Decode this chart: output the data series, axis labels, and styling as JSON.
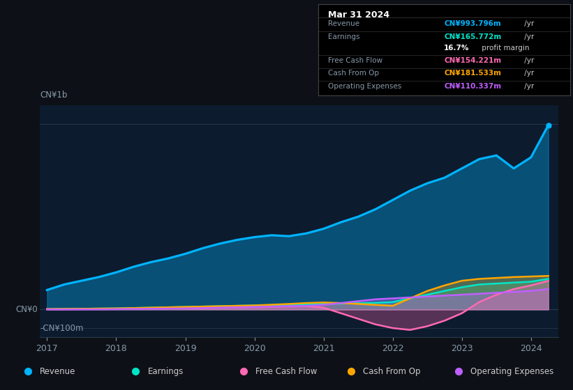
{
  "bg_color": "#0d1117",
  "chart_bg": "#0d1b2e",
  "grid_color": "#2a3a4a",
  "title_box": {
    "date": "Mar 31 2024",
    "rows": [
      {
        "label": "Revenue",
        "value": "CN¥993.796m",
        "color": "#00b4ff"
      },
      {
        "label": "Earnings",
        "value": "CN¥165.772m",
        "color": "#00e5c8"
      },
      {
        "label": "",
        "value": "16.7%",
        "suffix": " profit margin",
        "color": "#ffffff"
      },
      {
        "label": "Free Cash Flow",
        "value": "CN¥154.221m",
        "color": "#ff69b4"
      },
      {
        "label": "Cash From Op",
        "value": "CN¥181.533m",
        "color": "#ffa500"
      },
      {
        "label": "Operating Expenses",
        "value": "CN¥110.337m",
        "color": "#bf5fff"
      }
    ]
  },
  "ylabel_top": "CN¥1b",
  "ylabel_zero": "CN¥0",
  "ylabel_neg": "-CN¥100m",
  "years": [
    2017.0,
    2017.25,
    2017.5,
    2017.75,
    2018.0,
    2018.25,
    2018.5,
    2018.75,
    2019.0,
    2019.25,
    2019.5,
    2019.75,
    2020.0,
    2020.25,
    2020.5,
    2020.75,
    2021.0,
    2021.25,
    2021.5,
    2021.75,
    2022.0,
    2022.25,
    2022.5,
    2022.75,
    2023.0,
    2023.25,
    2023.5,
    2023.75,
    2024.0,
    2024.25
  ],
  "revenue": [
    105,
    135,
    155,
    175,
    200,
    230,
    255,
    275,
    300,
    330,
    355,
    375,
    390,
    400,
    395,
    410,
    435,
    470,
    500,
    540,
    590,
    640,
    680,
    710,
    760,
    810,
    830,
    760,
    820,
    993
  ],
  "earnings": [
    2,
    3,
    4,
    5,
    6,
    8,
    10,
    12,
    14,
    16,
    18,
    20,
    22,
    24,
    26,
    28,
    30,
    32,
    34,
    36,
    40,
    60,
    80,
    100,
    120,
    135,
    140,
    145,
    150,
    165
  ],
  "free_cash_flow": [
    2,
    2,
    3,
    3,
    4,
    5,
    5,
    6,
    7,
    8,
    9,
    10,
    12,
    14,
    16,
    18,
    10,
    -20,
    -50,
    -80,
    -100,
    -110,
    -90,
    -60,
    -20,
    40,
    80,
    110,
    130,
    154
  ],
  "cash_from_op": [
    2,
    3,
    4,
    5,
    6,
    8,
    10,
    12,
    14,
    16,
    18,
    20,
    22,
    26,
    30,
    35,
    38,
    35,
    30,
    25,
    20,
    60,
    100,
    130,
    155,
    165,
    170,
    175,
    178,
    181
  ],
  "operating_expenses": [
    0,
    0,
    1,
    1,
    2,
    3,
    4,
    5,
    6,
    8,
    10,
    12,
    14,
    16,
    18,
    20,
    25,
    35,
    45,
    55,
    60,
    65,
    70,
    75,
    80,
    85,
    90,
    95,
    100,
    110
  ],
  "revenue_color": "#00b4ff",
  "earnings_color": "#00e5c8",
  "fcf_color": "#ff69b4",
  "cashop_color": "#ffa500",
  "opex_color": "#bf5fff",
  "legend_items": [
    {
      "label": "Revenue",
      "color": "#00b4ff"
    },
    {
      "label": "Earnings",
      "color": "#00e5c8"
    },
    {
      "label": "Free Cash Flow",
      "color": "#ff69b4"
    },
    {
      "label": "Cash From Op",
      "color": "#ffa500"
    },
    {
      "label": "Operating Expenses",
      "color": "#bf5fff"
    }
  ],
  "xticks": [
    2017,
    2018,
    2019,
    2020,
    2021,
    2022,
    2023,
    2024
  ],
  "ylim": [
    -150,
    1100
  ]
}
